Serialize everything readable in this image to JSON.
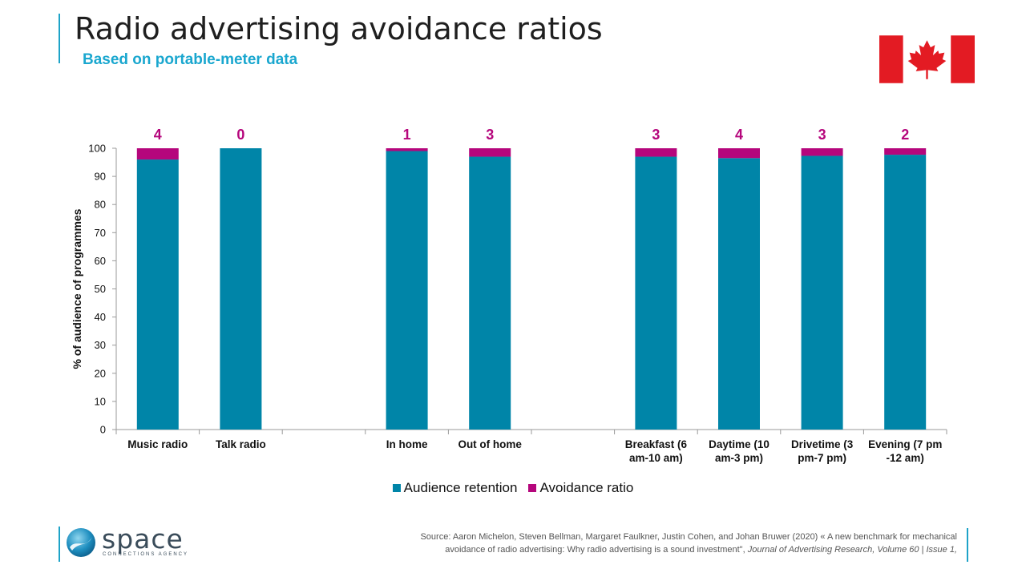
{
  "header": {
    "title": "Radio advertising avoidance ratios",
    "subtitle": "Based on portable-meter data"
  },
  "flag": {
    "icon": "canada-flag-icon",
    "red": "#e31b23",
    "white": "#ffffff"
  },
  "colors": {
    "accent": "#1ea3c8",
    "retention": "#0085a8",
    "avoidance": "#b5067c"
  },
  "chart_data": {
    "type": "bar",
    "stacked": true,
    "categories": [
      "Music radio",
      "Talk radio",
      "",
      "In home",
      "Out of home",
      "",
      "Breakfast (6 am-10 am)",
      "Daytime (10 am-3 pm)",
      "Drivetime (3 pm-7 pm)",
      "Evening (7 pm -12 am)"
    ],
    "category_lines": [
      [
        "Music radio"
      ],
      [
        "Talk radio"
      ],
      [],
      [
        "In home"
      ],
      [
        "Out of home"
      ],
      [],
      [
        "Breakfast (6",
        "am-10 am)"
      ],
      [
        "Daytime (10",
        "am-3 pm)"
      ],
      [
        "Drivetime (3",
        "pm-7 pm)"
      ],
      [
        "Evening (7 pm",
        "-12 am)"
      ]
    ],
    "series": [
      {
        "name": "Audience retention",
        "color": "#0085a8",
        "values": [
          96,
          100,
          null,
          99,
          97,
          null,
          97,
          96.5,
          97.3,
          97.7
        ]
      },
      {
        "name": "Avoidance ratio",
        "color": "#b5067c",
        "values": [
          4,
          0,
          null,
          1,
          3,
          null,
          3,
          3.5,
          2.7,
          2.3
        ]
      }
    ],
    "data_labels": [
      "4",
      "0",
      "",
      "1",
      "3",
      "",
      "3",
      "4",
      "3",
      "2"
    ],
    "ylabel": "% of audience of programmes",
    "xlabel": "",
    "ylim": [
      0,
      100
    ],
    "yticks": [
      0,
      10,
      20,
      30,
      40,
      50,
      60,
      70,
      80,
      90,
      100
    ],
    "grid": false,
    "legend": "bottom"
  },
  "footer": {
    "logo_word": "space",
    "logo_tagline": "CONNECTIONS AGENCY",
    "source_line1": "Source: Aaron Michelon, Steven Bellman, Margaret Faulkner, Justin Cohen, and Johan Bruwer (2020) « A new benchmark for mechanical",
    "source_line2_plain": "avoidance of radio advertising: Why radio advertising is a sound investment\",",
    "source_line2_italic": "Journal of Advertising Research, Volume 60 | Issue 1,"
  }
}
